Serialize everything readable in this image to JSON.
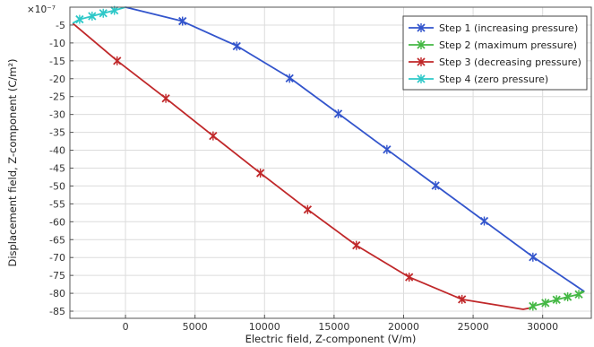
{
  "chart_data": {
    "type": "line",
    "title": "",
    "xlabel": "Electric field, Z-component (V/m)",
    "ylabel": "Displacement field, Z-component (C/m²)",
    "y_multiplier": "×10⁻⁷",
    "xlim": [
      -4000,
      33500
    ],
    "ylim": [
      -87,
      0
    ],
    "x_ticks": [
      0,
      5000,
      10000,
      15000,
      20000,
      25000,
      30000
    ],
    "y_ticks": [
      -5,
      -10,
      -15,
      -20,
      -25,
      -30,
      -35,
      -40,
      -45,
      -50,
      -55,
      -60,
      -65,
      -70,
      -75,
      -80,
      -85
    ],
    "grid": true,
    "legend_position": "top-right",
    "series": [
      {
        "name": "Step 1 (increasing pressure)",
        "color": "#3355cc",
        "x": [
          0,
          4000,
          8000,
          11800,
          15300,
          18800,
          22300,
          25800,
          29300,
          33000
        ],
        "y": [
          0,
          -3.8,
          -10.8,
          -19.7,
          -29.7,
          -39.8,
          -49.8,
          -59.8,
          -69.8,
          -79.5
        ],
        "markers_x": [
          4100,
          8000,
          11800,
          15300,
          18800,
          22300,
          25800,
          29300
        ],
        "markers_y": [
          -3.9,
          -10.9,
          -19.9,
          -29.8,
          -39.8,
          -49.9,
          -59.8,
          -69.9
        ]
      },
      {
        "name": "Step 2 (maximum pressure)",
        "color": "#44b844",
        "x": [
          29000,
          29300,
          30200,
          31000,
          31800,
          32600,
          33000
        ],
        "y": [
          -84.2,
          -83.6,
          -82.7,
          -81.8,
          -81.0,
          -80.3,
          -79.5
        ],
        "markers_x": [
          29300,
          30200,
          31000,
          31800,
          32600
        ],
        "markers_y": [
          -83.6,
          -82.7,
          -81.8,
          -81.0,
          -80.3
        ]
      },
      {
        "name": "Step 3 (decreasing pressure)",
        "color": "#c0282a",
        "x": [
          -3800,
          -600,
          2900,
          6300,
          9700,
          13100,
          16600,
          20400,
          24200,
          28600,
          29000
        ],
        "y": [
          -4.5,
          -15.0,
          -25.5,
          -36.0,
          -46.4,
          -56.6,
          -66.6,
          -75.5,
          -81.7,
          -84.5,
          -84.2
        ],
        "markers_x": [
          -600,
          2900,
          6300,
          9700,
          13100,
          16600,
          20400,
          24200
        ],
        "markers_y": [
          -15.0,
          -25.5,
          -36.0,
          -46.4,
          -56.6,
          -66.6,
          -75.5,
          -81.7
        ]
      },
      {
        "name": "Step 4 (zero pressure)",
        "color": "#2ec8c8",
        "x": [
          -3800,
          -3300,
          -2400,
          -1600,
          -800,
          0
        ],
        "y": [
          -4.5,
          -3.4,
          -2.5,
          -1.7,
          -0.9,
          0
        ],
        "markers_x": [
          -3300,
          -2400,
          -1600,
          -800
        ],
        "markers_y": [
          -3.4,
          -2.5,
          -1.7,
          -0.9
        ]
      }
    ]
  }
}
